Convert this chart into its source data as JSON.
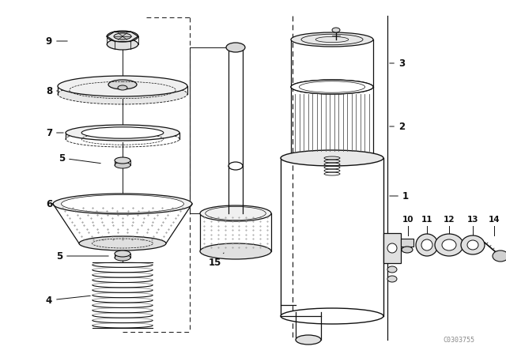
{
  "background_color": "#ffffff",
  "line_color": "#111111",
  "label_color": "#111111",
  "watermark": "C0303755",
  "fig_w": 6.4,
  "fig_h": 4.48,
  "dpi": 100
}
